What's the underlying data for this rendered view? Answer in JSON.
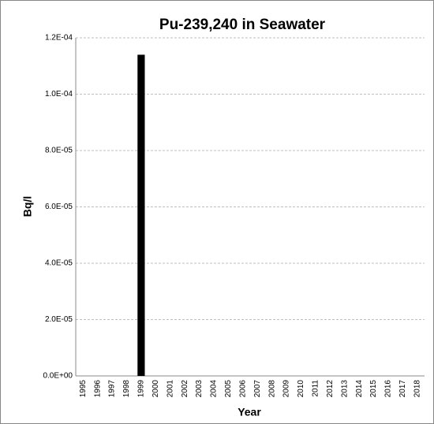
{
  "chart_data": {
    "type": "bar",
    "title": "Pu-239,240 in Seawater",
    "x_label": "Year",
    "y_label": "Bq/l",
    "categories": [
      "1995",
      "1996",
      "1997",
      "1998",
      "1999",
      "2000",
      "2001",
      "2002",
      "2003",
      "2004",
      "2005",
      "2006",
      "2007",
      "2008",
      "2009",
      "2010",
      "2011",
      "2012",
      "2013",
      "2014",
      "2015",
      "2016",
      "2017",
      "2018"
    ],
    "values": [
      null,
      null,
      null,
      null,
      0.000114,
      null,
      null,
      null,
      null,
      null,
      null,
      null,
      null,
      null,
      null,
      null,
      null,
      null,
      null,
      null,
      null,
      null,
      null,
      null
    ],
    "color": "#000000",
    "ylim": [
      0,
      0.00012
    ],
    "yticks": [
      {
        "value": 0,
        "label": "0.0E+00"
      },
      {
        "value": 2e-05,
        "label": "2.0E-05"
      },
      {
        "value": 4e-05,
        "label": "4.0E-05"
      },
      {
        "value": 6e-05,
        "label": "6.0E-05"
      },
      {
        "value": 8e-05,
        "label": "8.0E-05"
      },
      {
        "value": 0.0001,
        "label": "1.0E-04"
      },
      {
        "value": 0.00012,
        "label": "1.2E-04"
      }
    ],
    "grid": true
  }
}
